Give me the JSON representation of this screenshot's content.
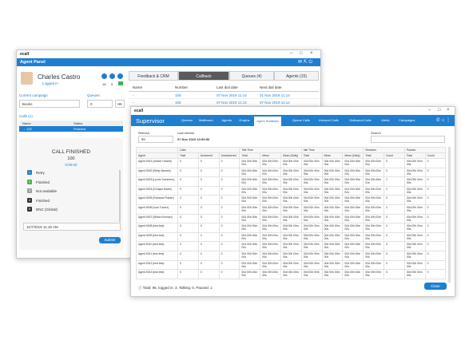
{
  "agent_panel": {
    "logo": "ecall",
    "title": "Agent Panel",
    "agent_name": "Charles Castro",
    "status": "Logged in",
    "badges": [
      "16",
      "5"
    ],
    "campaign_label": "Current campaign",
    "queues_label": "Queues",
    "campaign": "Books",
    "queues_count": "0",
    "queues_button": "HK",
    "calls_title": "Calls (1)",
    "calls_headers": [
      "Name",
      "Status"
    ],
    "calls_rows": [
      [
        "→ 100",
        "Finished"
      ]
    ],
    "call_state": "CALL FINISHED",
    "call_number": "100",
    "call_time": "0:00:02",
    "dispositions": [
      {
        "key": "1",
        "label": "Retry"
      },
      {
        "key": "2",
        "label": "Finished"
      },
      {
        "key": "3",
        "label": "Not available"
      },
      {
        "key": "4",
        "label": "Finished"
      },
      {
        "key": "5",
        "label": "DNC (Global)"
      }
    ],
    "datetime": "11/7/2019 11:15 AM",
    "submit": "Submit",
    "tabs": [
      "Feedback & CRM",
      "Callback",
      "Queues (4)",
      "Agents (15)"
    ],
    "callback_headers": [
      "Name",
      "Number",
      "Last dial date",
      "Next dial date"
    ],
    "callback_rows": [
      [
        "-",
        "100",
        "07 Nov 2019 11:14",
        "21 Nov 2019 11:14"
      ],
      [
        "-",
        "100",
        "07 Nov 2019 11:14",
        "07 Nov 2019 11:14"
      ]
    ]
  },
  "supervisor": {
    "logo": "ecall",
    "title": "Supervisor",
    "nav": [
      "Queues",
      "Wallboard",
      "Agents",
      "Graphs",
      "Agent Statistics",
      "Queue Calls",
      "Inbound Calls",
      "Outbound Calls",
      "Alerts",
      "Campaigns"
    ],
    "refresh_label": "Refresh",
    "refresh_value": "5s",
    "last_refresh_label": "Last refresh",
    "last_refresh_value": "07 Nov 2019 10:53:50",
    "search_label": "Search",
    "groups": [
      "Calls",
      "Talk Time",
      "Idle Time",
      "Sessions",
      "Pauses"
    ],
    "columns": [
      "Agent",
      "Total",
      "Answered",
      "Unanswered",
      "Total",
      "Mean",
      "Mean (Daily)",
      "Total",
      "Mean",
      "Mean (Daily)",
      "Total",
      "Count",
      "Total",
      "Count"
    ],
    "rows": [
      [
        "Agent 5001 (Amber Howell)",
        "0",
        "0",
        "0",
        "00d 00h 00m 00s",
        "00d 00h 00m 00s",
        "00d 00h 00m 00s",
        "00d 00h 00m 00s",
        "00d 00h 00m 00s",
        "00d 00h 00m 00s",
        "00d 00h 00m 00s",
        "0",
        "00d 00h 00m 00s",
        "0"
      ],
      [
        "Agent 5002 (Betsy Barnes)",
        "0",
        "0",
        "0",
        "00d 00h 00m 00s",
        "00d 00h 00m 00s",
        "00d 00h 00m 00s",
        "00d 00h 00m 00s",
        "00d 00h 00m 00s",
        "00d 00h 00m 00s",
        "00d 00h 00m 00s",
        "0",
        "00d 00h 00m 00s",
        "0"
      ],
      [
        "Agent 5003 (Lynne Summers)",
        "0",
        "0",
        "0",
        "00d 00h 00m 00s",
        "00d 00h 00m 00s",
        "00d 00h 00m 00s",
        "00d 00h 00m 00s",
        "00d 00h 00m 00s",
        "00d 00h 00m 00s",
        "00d 00h 46m 01s",
        "1",
        "00d 00h 00m 00s",
        "0"
      ],
      [
        "Agent 5004 (Enrique Marin)",
        "0",
        "0",
        "0",
        "00d 00h 00m 00s",
        "00d 00h 00m 00s",
        "00d 00h 00m 00s",
        "00d 00h 00m 00s",
        "00d 00h 00m 00s",
        "00d 00h 00m 00s",
        "00d 00h 00m 00s",
        "0",
        "00d 00h 00m 00s",
        "0"
      ],
      [
        "Agent 5005 (Ramona Plaster)",
        "0",
        "0",
        "0",
        "00d 00h 00m 00s",
        "00d 00h 00m 00s",
        "00d 00h 00m 00s",
        "00d 00h 00m 00s",
        "00d 00h 00m 00s",
        "00d 00h 00m 00s",
        "00d 00h 00m 00s",
        "0",
        "00d 00h 00m 00s",
        "0"
      ],
      [
        "Agent 5006 (Ivan Tucker)",
        "0",
        "0",
        "0",
        "00d 00h 00m 00s",
        "00d 00h 00m 00s",
        "00d 00h 00m 00s",
        "00d 00h 00m 00s",
        "00d 00h 00m 00s",
        "00d 00h 00m 00s",
        "00d 00h 00m 00s",
        "0",
        "00d 00h 00m 00s",
        "0"
      ],
      [
        "Agent 5007 (Milton Norman)",
        "0",
        "0",
        "0",
        "00d 00h 00m 00s",
        "00d 00h 00m 00s",
        "00d 00h 00m 00s",
        "00d 00h 00m 00s",
        "00d 00h 00m 00s",
        "00d 00h 00m 00s",
        "00d 00h 00m 00s",
        "0",
        "00d 00h 00m 00s",
        "0"
      ],
      [
        "Agent 5008 (test test)",
        "0",
        "0",
        "0",
        "00d 00h 00m 00s",
        "00d 00h 00m 00s",
        "00d 00h 00m 00s",
        "00d 00h 00m 00s",
        "00d 00h 00m 00s",
        "00d 00h 00m 00s",
        "00d 00h 00m 00s",
        "0",
        "00d 00h 00m 00s",
        "0"
      ],
      [
        "Agent 5009 (test test)",
        "0",
        "0",
        "0",
        "00d 00h 00m 00s",
        "00d 00h 00m 00s",
        "00d 00h 00m 00s",
        "00d 00h 00m 00s",
        "00d 00h 00m 00s",
        "00d 00h 00m 00s",
        "00d 00h 00m 00s",
        "0",
        "00d 00h 00m 00s",
        "0"
      ],
      [
        "Agent 5010 (test test)",
        "0",
        "0",
        "0",
        "00d 00h 00m 00s",
        "00d 00h 00m 00s",
        "00d 00h 00m 00s",
        "00d 00h 00m 00s",
        "00d 00h 00m 00s",
        "00d 00h 00m 00s",
        "00d 00h 00m 00s",
        "0",
        "00d 00h 00m 00s",
        "0"
      ],
      [
        "Agent 5011 (test test)",
        "0",
        "0",
        "0",
        "00d 00h 00m 00s",
        "00d 00h 00m 00s",
        "00d 00h 00m 00s",
        "00d 00h 00m 00s",
        "00d 00h 00m 00s",
        "00d 00h 00m 00s",
        "00d 00h 00m 00s",
        "0",
        "00d 00h 00m 00s",
        "0"
      ],
      [
        "Agent 5012 (test test)",
        "0",
        "0",
        "0",
        "00d 00h 00m 00s",
        "00d 00h 00m 00s",
        "00d 00h 00m 00s",
        "00d 00h 00m 00s",
        "00d 00h 00m 00s",
        "00d 00h 00m 00s",
        "00d 00h 00m 00s",
        "0",
        "00d 00h 00m 00s",
        "0"
      ],
      [
        "Agent 5013 (test test)",
        "0",
        "0",
        "0",
        "00d 00h 00m 00s",
        "00d 00h 00m 00s",
        "00d 00h 00m 00s",
        "00d 00h 00m 00s",
        "00d 00h 00m 00s",
        "00d 00h 00m 00s",
        "00d 00h 00m 00s",
        "0",
        "00d 00h 00m 00s",
        "0"
      ]
    ],
    "footer": "Total: 86, logged in: 3, Talking: 0, Paused: 1",
    "close": "Close"
  }
}
